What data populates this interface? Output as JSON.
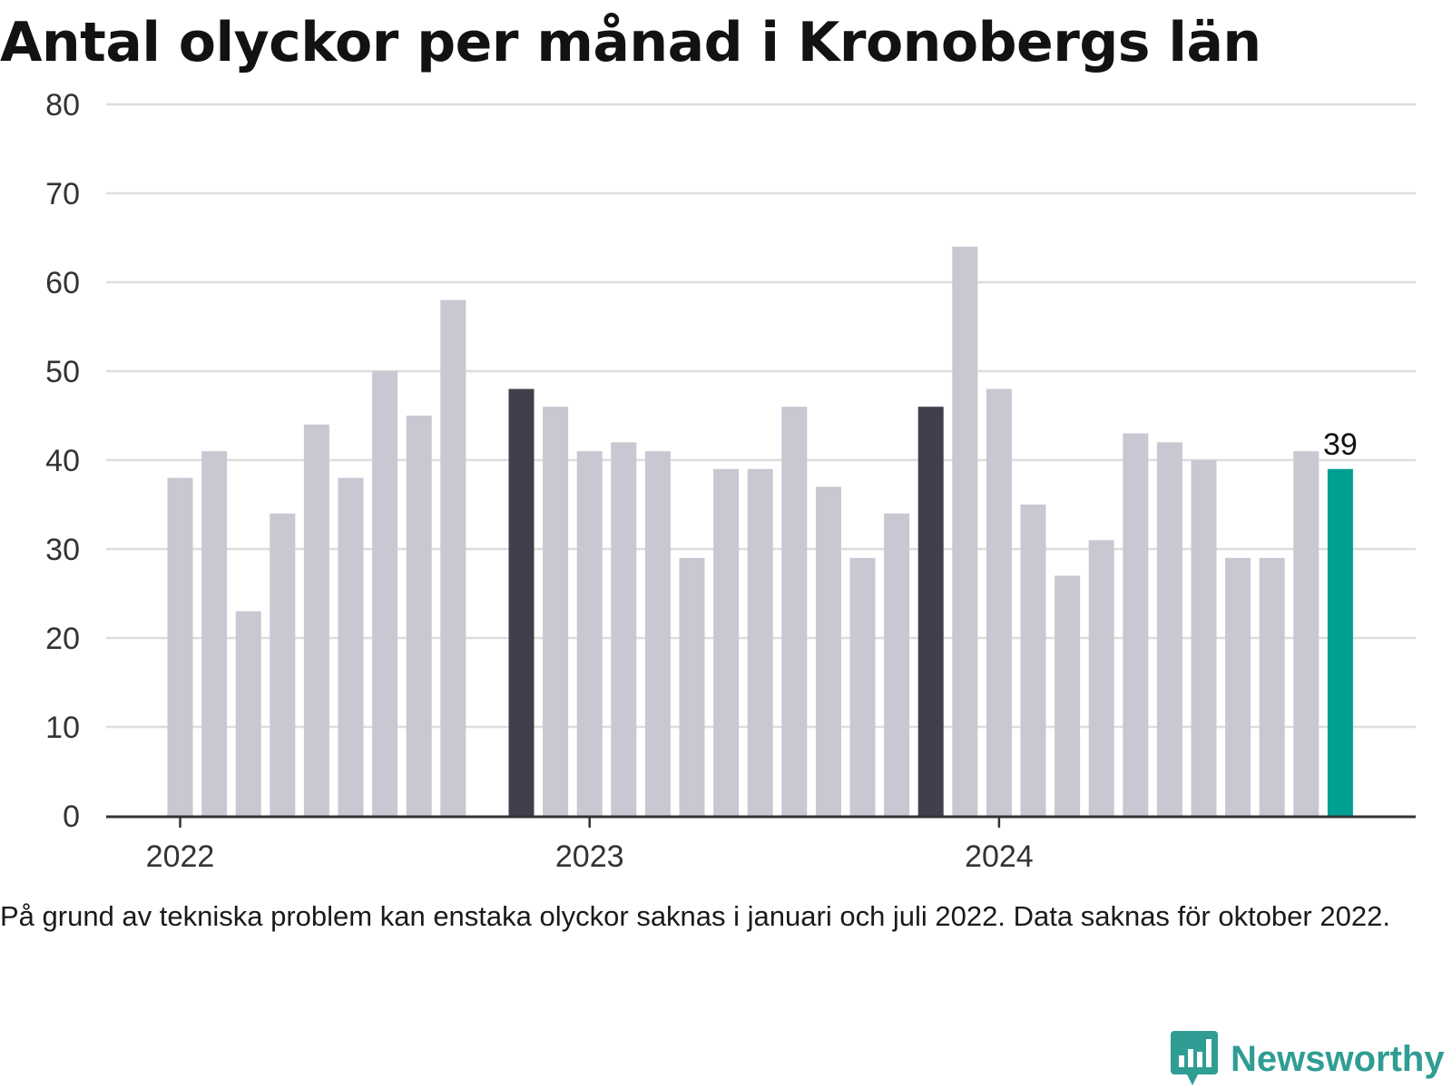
{
  "header": {
    "title": "Antal olyckor per månad i Kronobergs län"
  },
  "footer": {
    "note": "På grund av tekniska problem kan enstaka olyckor saknas i januari och juli 2022. Data saknas för oktober 2022.",
    "brand": "Newsworthy"
  },
  "colors": {
    "default": "#c8c7d2",
    "december": "#403f4e",
    "latest": "#00a093",
    "grid": "#dddddd",
    "axis": "#333333",
    "brand": "#2f9d93"
  },
  "chart_data": {
    "type": "bar",
    "title": "Antal olyckor per månad i Kronobergs län",
    "xlabel": "",
    "ylabel": "",
    "ylim": [
      0,
      80
    ],
    "yticks": [
      0,
      10,
      20,
      30,
      40,
      50,
      60,
      70,
      80
    ],
    "grid": true,
    "x_tick_labels": [
      {
        "label": "2022",
        "month": "2022-01"
      },
      {
        "label": "2023",
        "month": "2023-01"
      },
      {
        "label": "2024",
        "month": "2024-01"
      }
    ],
    "bars": [
      {
        "month": "2022-01",
        "value": 38,
        "style": "default"
      },
      {
        "month": "2022-02",
        "value": 41,
        "style": "default"
      },
      {
        "month": "2022-03",
        "value": 23,
        "style": "default"
      },
      {
        "month": "2022-04",
        "value": 34,
        "style": "default"
      },
      {
        "month": "2022-05",
        "value": 44,
        "style": "default"
      },
      {
        "month": "2022-06",
        "value": 38,
        "style": "default"
      },
      {
        "month": "2022-07",
        "value": 50,
        "style": "default"
      },
      {
        "month": "2022-08",
        "value": 45,
        "style": "default"
      },
      {
        "month": "2022-09",
        "value": 58,
        "style": "default"
      },
      {
        "month": "2022-10",
        "value": null,
        "style": "missing"
      },
      {
        "month": "2022-11",
        "value": 48,
        "style": "december"
      },
      {
        "month": "2022-12",
        "value": 46,
        "style": "default"
      },
      {
        "month": "2023-01",
        "value": 41,
        "style": "default"
      },
      {
        "month": "2023-02",
        "value": 42,
        "style": "default"
      },
      {
        "month": "2023-03",
        "value": 41,
        "style": "default"
      },
      {
        "month": "2023-04",
        "value": 29,
        "style": "default"
      },
      {
        "month": "2023-05",
        "value": 39,
        "style": "default"
      },
      {
        "month": "2023-06",
        "value": 39,
        "style": "default"
      },
      {
        "month": "2023-07",
        "value": 46,
        "style": "default"
      },
      {
        "month": "2023-08",
        "value": 37,
        "style": "default"
      },
      {
        "month": "2023-09",
        "value": 29,
        "style": "default"
      },
      {
        "month": "2023-10",
        "value": 34,
        "style": "default"
      },
      {
        "month": "2023-11",
        "value": 46,
        "style": "december"
      },
      {
        "month": "2023-12",
        "value": 64,
        "style": "default"
      },
      {
        "month": "2024-01",
        "value": 48,
        "style": "default"
      },
      {
        "month": "2024-02",
        "value": 35,
        "style": "default"
      },
      {
        "month": "2024-03",
        "value": 27,
        "style": "default"
      },
      {
        "month": "2024-04",
        "value": 31,
        "style": "default"
      },
      {
        "month": "2024-05",
        "value": 43,
        "style": "default"
      },
      {
        "month": "2024-06",
        "value": 42,
        "style": "default"
      },
      {
        "month": "2024-07",
        "value": 40,
        "style": "default"
      },
      {
        "month": "2024-08",
        "value": 29,
        "style": "default"
      },
      {
        "month": "2024-09",
        "value": 29,
        "style": "default"
      },
      {
        "month": "2024-10",
        "value": 41,
        "style": "default"
      },
      {
        "month": "2024-11",
        "value": 39,
        "style": "latest"
      }
    ],
    "data_labels": [
      {
        "month": "2024-11",
        "text": "39"
      }
    ]
  }
}
